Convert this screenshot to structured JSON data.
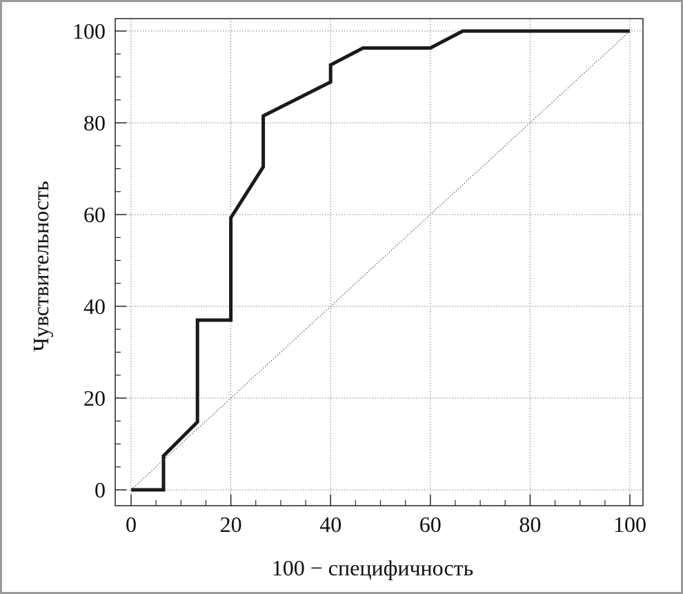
{
  "chart_data": {
    "type": "line",
    "xlabel": "100 − специфичность",
    "ylabel": "Чувствительность",
    "xlim": [
      0,
      100
    ],
    "ylim": [
      0,
      100
    ],
    "x_ticks": [
      0,
      20,
      40,
      60,
      80,
      100
    ],
    "y_ticks": [
      0,
      20,
      40,
      60,
      80,
      100
    ],
    "x_tick_labels": [
      "0",
      "20",
      "40",
      "60",
      "80",
      "100"
    ],
    "y_tick_labels": [
      "0",
      "20",
      "40",
      "60",
      "80",
      "100"
    ],
    "grid": true,
    "series": [
      {
        "style": "solid-thick",
        "color": "#1a1a1a",
        "x": [
          0,
          6.5,
          6.5,
          13.3,
          13.3,
          20,
          20,
          26.5,
          26.5,
          40,
          40,
          46.5,
          60,
          66.5,
          100
        ],
        "y": [
          0,
          0,
          7.4,
          14.8,
          37,
          37,
          59.3,
          70.4,
          81.5,
          88.9,
          92.6,
          96.3,
          96.3,
          100,
          100
        ]
      },
      {
        "style": "dotted-reference",
        "color": "#555555",
        "x": [
          0,
          100
        ],
        "y": [
          0,
          100
        ]
      }
    ]
  }
}
